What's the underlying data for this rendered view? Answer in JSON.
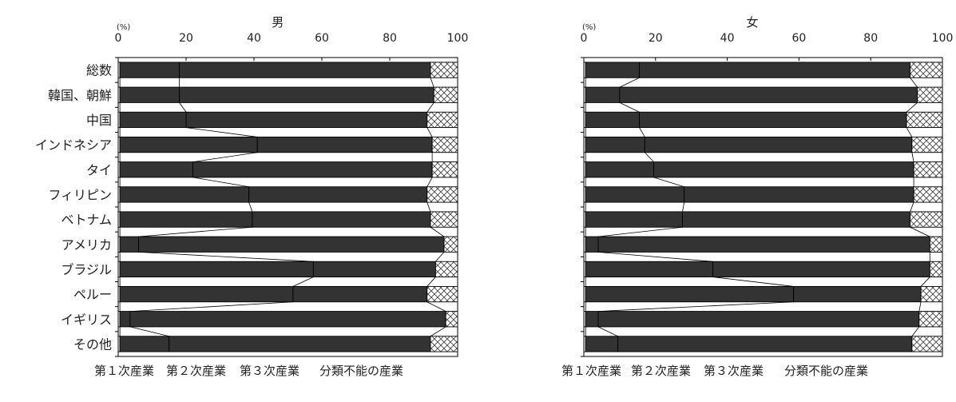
{
  "colors": {
    "primary": "#ffffff",
    "secondary": "#333333",
    "tertiary_hatch": "#ffffff",
    "frame": "#000000"
  },
  "chart_data": [
    {
      "type": "bar",
      "orientation": "horizontal",
      "stacked": "100%",
      "title": "男",
      "unit_label": "(%)",
      "xlim": [
        0,
        100
      ],
      "xticks": [
        "0",
        "20",
        "40",
        "60",
        "80",
        "100"
      ],
      "categories": [
        "総数",
        "韓国、朝鮮",
        "中国",
        "インドネシア",
        "タイ",
        "フィリピン",
        "ベトナム",
        "アメリカ",
        "ブラジル",
        "ペルー",
        "イギリス",
        "その他"
      ],
      "series": [
        {
          "name": "第１次産業",
          "values": [
            0.5,
            0.5,
            0.5,
            0.5,
            0.5,
            0.5,
            0.5,
            0.5,
            0.5,
            0.5,
            0.5,
            0.5
          ]
        },
        {
          "name": "第２次産業",
          "values": [
            17.5,
            17.5,
            19.5,
            40.5,
            21.5,
            38,
            39,
            5.5,
            57,
            51,
            3,
            14.5
          ]
        },
        {
          "name": "第３次産業",
          "values": [
            74,
            75,
            71,
            51.5,
            70.5,
            52.5,
            52.5,
            90,
            36,
            39.5,
            93,
            77
          ]
        },
        {
          "name": "分類不能の産業",
          "values": [
            8,
            7,
            9,
            7.5,
            7.5,
            9,
            8,
            4,
            6.5,
            9,
            3.5,
            8
          ]
        }
      ],
      "legend": [
        "第１次産業",
        "第２次産業",
        "第３次産業",
        "分類不能の産業"
      ],
      "legend_position": "bottom"
    },
    {
      "type": "bar",
      "orientation": "horizontal",
      "stacked": "100%",
      "title": "女",
      "unit_label": "(%)",
      "xlim": [
        0,
        100
      ],
      "xticks": [
        "0",
        "20",
        "40",
        "60",
        "80",
        "100"
      ],
      "categories": [
        "総数",
        "韓国、朝鮮",
        "中国",
        "インドネシア",
        "タイ",
        "フィリピン",
        "ベトナム",
        "アメリカ",
        "ブラジル",
        "ペルー",
        "イギリス",
        "その他"
      ],
      "series": [
        {
          "name": "第１次産業",
          "values": [
            0.5,
            0.5,
            0.5,
            0.5,
            0.5,
            0.5,
            0.5,
            0.5,
            0.5,
            0.5,
            0.5,
            0.5
          ]
        },
        {
          "name": "第２次産業",
          "values": [
            15,
            9.5,
            15,
            16.5,
            19,
            27.5,
            27,
            3.5,
            35.5,
            58,
            3.5,
            9
          ]
        },
        {
          "name": "第３次産業",
          "values": [
            75.5,
            83,
            74.5,
            74.5,
            72.5,
            64,
            63.5,
            92.5,
            60.5,
            35.5,
            89.5,
            82
          ]
        },
        {
          "name": "分類不能の産業",
          "values": [
            9,
            7,
            10,
            8.5,
            8,
            8,
            9,
            3.5,
            3.5,
            6,
            6.5,
            8.5
          ]
        }
      ],
      "legend": [
        "第１次産業",
        "第２次産業",
        "第３次産業",
        "分類不能の産業"
      ],
      "legend_position": "bottom"
    }
  ]
}
